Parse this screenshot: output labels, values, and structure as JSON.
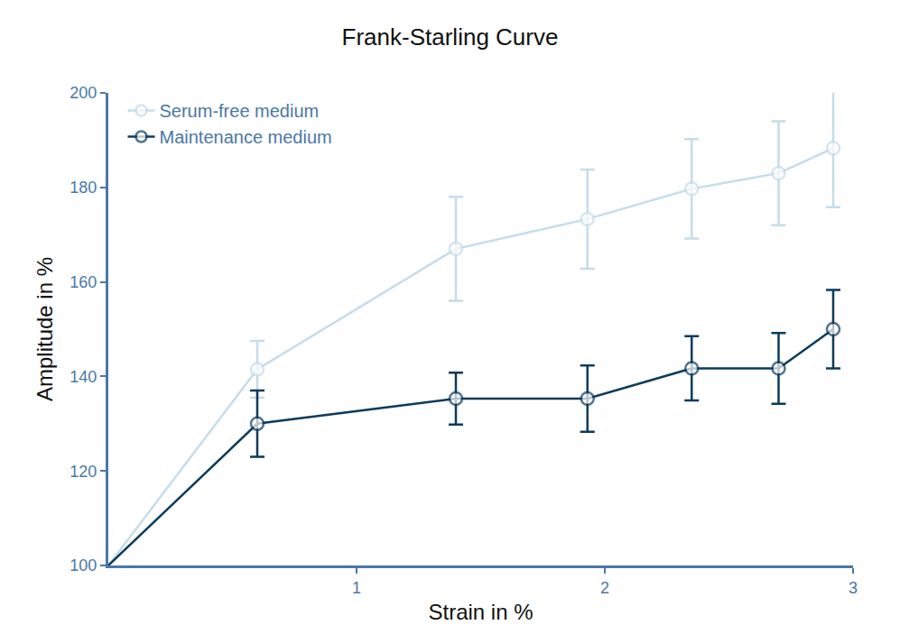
{
  "chart_data": {
    "type": "line",
    "title": "Frank-Starling Curve",
    "x_label": "Strain in %",
    "y_label": "Amplitude in %",
    "xlim": [
      0,
      3
    ],
    "xticks": [
      1,
      2,
      3
    ],
    "ylim": [
      100,
      200
    ],
    "yticks": [
      100,
      120,
      140,
      160,
      180,
      200
    ],
    "grid": false,
    "legend": "top left",
    "marker": "open circle",
    "series": [
      {
        "name": "Serum-free medium",
        "color": "#c5dcea",
        "x": [
          0,
          0.6,
          1.4,
          1.93,
          2.35,
          2.7,
          2.92
        ],
        "values": [
          100,
          141.5,
          167,
          173.3,
          179.7,
          183,
          188.3
        ],
        "error": [
          null,
          6,
          11,
          10.5,
          10.5,
          11,
          12.5
        ]
      },
      {
        "name": "Maintenance medium",
        "color": "#0d3b5c",
        "x": [
          0,
          0.6,
          1.4,
          1.93,
          2.35,
          2.7,
          2.92
        ],
        "values": [
          100,
          130,
          135.3,
          135.3,
          141.7,
          141.7,
          150
        ],
        "error": [
          null,
          7,
          5.5,
          7,
          6.8,
          7.5,
          8.3
        ]
      }
    ]
  }
}
